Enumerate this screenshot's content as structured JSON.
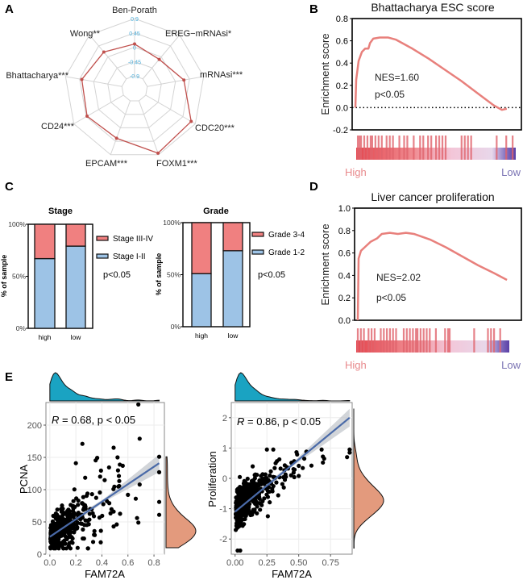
{
  "panel_letters": {
    "a": "A",
    "b": "B",
    "c": "C",
    "d": "D",
    "e": "E"
  },
  "chart_data": [
    {
      "type": "radar",
      "axes": [
        "Ben-Porath",
        "EREG−mRNAsi*",
        "mRNAsi***",
        "CDC20***",
        "FOXM1***",
        "EPCAM***",
        "CD24***",
        "Bhattacharya***",
        "Wong**"
      ],
      "values": [
        0.1,
        -0.1,
        0.27,
        0.75,
        0.85,
        0.35,
        0.42,
        0.38,
        0.2
      ],
      "radial_ticks": [
        "0.9",
        "0.45",
        "0",
        "-0.45",
        "-0.9"
      ],
      "radial_tick_values": [
        0.9,
        0.45,
        0,
        -0.45,
        -0.9
      ],
      "rlim": [
        -1.35,
        0.9
      ],
      "series_color": "#c0504d"
    },
    {
      "type": "line",
      "title": "Bhattacharya ESC score",
      "ylabel": "Enrichment score",
      "ylim": [
        -0.2,
        0.8
      ],
      "yticks": [
        "0.8",
        "0.6",
        "0.4",
        "0.2",
        "0.0",
        "-0.2"
      ],
      "ytick_values": [
        0.8,
        0.6,
        0.4,
        0.2,
        0.0,
        -0.2
      ],
      "x": [
        0,
        0.005,
        0.02,
        0.04,
        0.06,
        0.08,
        0.09,
        0.11,
        0.15,
        0.2,
        0.25,
        0.3,
        0.35,
        0.45,
        0.55,
        0.65,
        0.75,
        0.85,
        0.9,
        0.93
      ],
      "y": [
        0,
        0.25,
        0.42,
        0.5,
        0.53,
        0.53,
        0.58,
        0.62,
        0.63,
        0.63,
        0.61,
        0.57,
        0.53,
        0.44,
        0.34,
        0.24,
        0.13,
        0.02,
        -0.02,
        -0.01
      ],
      "baseline": 0,
      "annotations": [
        "NES=1.60",
        "p<0.05"
      ],
      "hits": [
        0.01,
        0.02,
        0.03,
        0.05,
        0.07,
        0.09,
        0.1,
        0.12,
        0.14,
        0.16,
        0.19,
        0.21,
        0.23,
        0.27,
        0.3,
        0.32,
        0.36,
        0.4,
        0.42,
        0.45,
        0.47,
        0.5,
        0.52,
        0.54,
        0.56,
        0.66,
        0.68,
        0.7,
        0.72,
        0.88,
        0.94,
        0.98
      ],
      "rank_labels": {
        "high": "High",
        "low": "Low"
      },
      "line_color": "#e8807c"
    },
    {
      "type": "bar",
      "stacked": true,
      "title": "Stage",
      "ylabel": "% of sample",
      "categories": [
        "high",
        "low"
      ],
      "yticks": [
        "100%",
        "50%",
        "0%"
      ],
      "series": [
        {
          "name": "Stage I-II",
          "values": [
            67,
            79
          ],
          "color": "#9dc3e6"
        },
        {
          "name": "Stage III-IV",
          "values": [
            33,
            21
          ],
          "color": "#f08080"
        }
      ],
      "annotation": "p<0.05"
    },
    {
      "type": "bar",
      "stacked": true,
      "title": "Grade",
      "ylabel": "% of sample",
      "categories": [
        "high",
        "low"
      ],
      "yticks": [
        "100%",
        "50%",
        "0%"
      ],
      "series": [
        {
          "name": "Grade 1-2",
          "values": [
            51,
            73
          ],
          "color": "#9dc3e6"
        },
        {
          "name": "Grade 3-4",
          "values": [
            49,
            27
          ],
          "color": "#f08080"
        }
      ],
      "annotation": "p<0.05"
    },
    {
      "type": "line",
      "title": "Liver cancer proliferation",
      "ylabel": "Enrichment score",
      "ylim": [
        0,
        1.0
      ],
      "yticks": [
        "1.0",
        "0.8",
        "0.6",
        "0.4",
        "0.2",
        "0.0"
      ],
      "ytick_values": [
        1.0,
        0.8,
        0.6,
        0.4,
        0.2,
        0.0
      ],
      "x": [
        0,
        0.005,
        0.02,
        0.05,
        0.08,
        0.12,
        0.15,
        0.2,
        0.25,
        0.3,
        0.35,
        0.45,
        0.55,
        0.65,
        0.75,
        0.85,
        0.93
      ],
      "y": [
        0,
        0.55,
        0.62,
        0.66,
        0.7,
        0.73,
        0.77,
        0.78,
        0.77,
        0.78,
        0.77,
        0.72,
        0.65,
        0.57,
        0.49,
        0.42,
        0.36
      ],
      "annotations": [
        "NES=2.02",
        "p<0.05"
      ],
      "hits": [
        0.01,
        0.03,
        0.05,
        0.08,
        0.1,
        0.12,
        0.16,
        0.18,
        0.2,
        0.22,
        0.24,
        0.26,
        0.31,
        0.33,
        0.35,
        0.37,
        0.39,
        0.4,
        0.42,
        0.44,
        0.46,
        0.48,
        0.52,
        0.58,
        0.6,
        0.61,
        0.77,
        0.86,
        0.88,
        0.9,
        0.94
      ],
      "rank_labels": {
        "high": "High",
        "low": "Low"
      },
      "line_color": "#e8807c"
    },
    {
      "type": "scatter",
      "xlabel": "FAM72A",
      "ylabel": "PCNA",
      "xlim": [
        -0.03,
        0.88
      ],
      "ylim": [
        0,
        235
      ],
      "xticks": [
        "0.0",
        "0.2",
        "0.4",
        "0.6",
        "0.8"
      ],
      "xtick_values": [
        0,
        0.2,
        0.4,
        0.6,
        0.8
      ],
      "yticks": [
        "0",
        "50",
        "100",
        "150",
        "200"
      ],
      "ytick_values": [
        0,
        50,
        100,
        150,
        200
      ],
      "annotation": {
        "r_symbol": "R",
        "text": " = 0.68, p < 0.05"
      },
      "regression": {
        "x": [
          0,
          0.84
        ],
        "y": [
          27,
          141
        ]
      },
      "n": 420,
      "outliers": [
        [
          0.68,
          232
        ],
        [
          0.69,
          179
        ],
        [
          0.25,
          171
        ],
        [
          0.49,
          165
        ],
        [
          0.52,
          150
        ],
        [
          0.84,
          151
        ],
        [
          0.84,
          127
        ],
        [
          0.84,
          81
        ],
        [
          0.84,
          61
        ],
        [
          0.66,
          86
        ],
        [
          0.67,
          56
        ],
        [
          0.68,
          49
        ],
        [
          0.69,
          108
        ],
        [
          0.49,
          43
        ],
        [
          0.56,
          137
        ],
        [
          0.2,
          141
        ],
        [
          0.49,
          66
        ],
        [
          0.6,
          92
        ]
      ],
      "x_density_color": "#1aa3c2",
      "y_density_color": "#e39a7d",
      "line_color": "#4a6aa8"
    },
    {
      "type": "scatter",
      "xlabel": "FAM72A",
      "ylabel": "Proliferation",
      "xlim": [
        -0.03,
        0.92
      ],
      "ylim": [
        -2.5,
        2.5
      ],
      "xticks": [
        "0.00",
        "0.25",
        "0.50",
        "0.75"
      ],
      "xtick_values": [
        0,
        0.25,
        0.5,
        0.75
      ],
      "yticks": [
        "2",
        "1",
        "0",
        "-1",
        "-2"
      ],
      "ytick_values": [
        2,
        1,
        0,
        -1,
        -2
      ],
      "annotation": {
        "r_symbol": "R",
        "text": " = 0.86, p < 0.05"
      },
      "regression": {
        "x": [
          0,
          0.9
        ],
        "y": [
          -1.1,
          2.0
        ]
      },
      "n": 420,
      "outliers": [
        [
          0.25,
          0.95
        ],
        [
          0.3,
          0.95
        ],
        [
          0.56,
          0.88
        ],
        [
          0.68,
          0.95
        ],
        [
          0.69,
          0.72
        ],
        [
          0.69,
          0.52
        ],
        [
          0.7,
          0.65
        ],
        [
          0.88,
          0.7
        ],
        [
          0.9,
          0.95
        ],
        [
          0.9,
          0.85
        ],
        [
          0.6,
          0.42
        ],
        [
          0.5,
          0.08
        ],
        [
          0.44,
          0.1
        ],
        [
          0.02,
          -2.38
        ],
        [
          0.04,
          -2.38
        ]
      ],
      "x_density_color": "#1aa3c2",
      "y_density_color": "#e39a7d",
      "line_color": "#4a6aa8"
    }
  ]
}
